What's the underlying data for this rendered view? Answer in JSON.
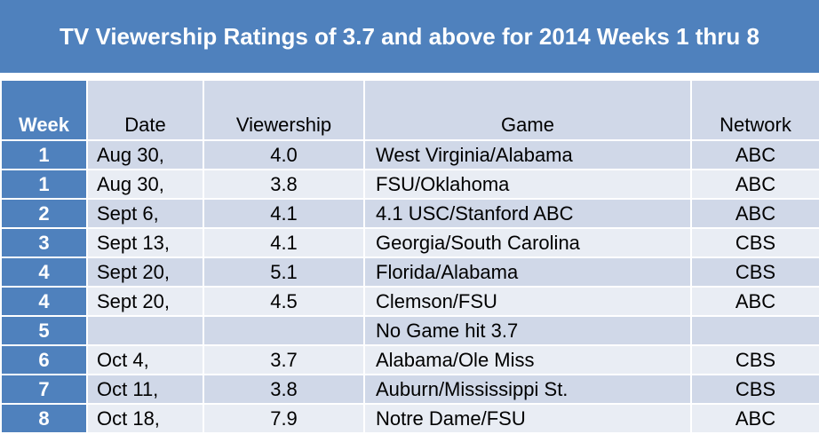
{
  "title": "TV Viewership Ratings of 3.7 and above for 2014 Weeks 1 thru 8",
  "headers": {
    "week": "Week",
    "date": "Date",
    "viewership": "Viewership",
    "game": "Game",
    "network": "Network"
  },
  "rows": [
    {
      "week": "1",
      "date": "Aug 30,",
      "viewership": "4.0",
      "game": "West Virginia/Alabama",
      "network": "ABC"
    },
    {
      "week": "1",
      "date": "Aug 30,",
      "viewership": "3.8",
      "game": "FSU/Oklahoma",
      "network": "ABC"
    },
    {
      "week": "2",
      "date": "Sept 6,",
      "viewership": "4.1",
      "game": "4.1 USC/Stanford ABC",
      "network": "ABC"
    },
    {
      "week": "3",
      "date": "Sept 13,",
      "viewership": "4.1",
      "game": "Georgia/South Carolina",
      "network": "CBS"
    },
    {
      "week": "4",
      "date": "Sept 20,",
      "viewership": "5.1",
      "game": "Florida/Alabama",
      "network": "CBS"
    },
    {
      "week": "4",
      "date": "Sept 20,",
      "viewership": "4.5",
      "game": "Clemson/FSU",
      "network": "ABC"
    },
    {
      "week": "5",
      "date": "",
      "viewership": "",
      "game": "No Game hit 3.7",
      "network": ""
    },
    {
      "week": "6",
      "date": "Oct 4,",
      "viewership": "3.7",
      "game": "Alabama/Ole Miss",
      "network": "CBS"
    },
    {
      "week": "7",
      "date": "Oct 11,",
      "viewership": "3.8",
      "game": "Auburn/Mississippi St.",
      "network": "CBS"
    },
    {
      "week": "8",
      "date": "Oct 18,",
      "viewership": "7.9",
      "game": "Notre Dame/FSU",
      "network": "ABC"
    }
  ],
  "colors": {
    "header_blue": "#4f81bd",
    "row_dark": "#d0d8e8",
    "row_light": "#e9edf4"
  }
}
